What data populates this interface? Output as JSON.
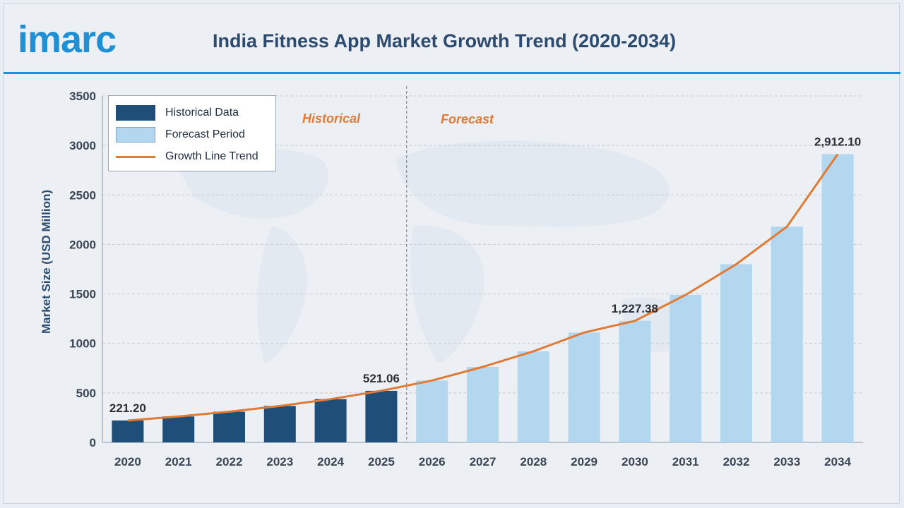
{
  "brand": {
    "logo_text": "imarc"
  },
  "colors": {
    "historical": "#1f4e79",
    "forecast": "#b3d7ef",
    "trend": "#e07a34",
    "brand": "#1f8fd6"
  },
  "chart_data": {
    "type": "bar",
    "title": "India Fitness App Market Growth Trend (2020-2034)",
    "xlabel": "",
    "ylabel": "Market Size (USD Million)",
    "ylim": [
      0,
      3500
    ],
    "yticks": [
      0,
      500,
      1000,
      1500,
      2000,
      2500,
      3000,
      3500
    ],
    "categories": [
      "2020",
      "2021",
      "2022",
      "2023",
      "2024",
      "2025",
      "2026",
      "2027",
      "2028",
      "2029",
      "2030",
      "2031",
      "2032",
      "2033",
      "2034"
    ],
    "series": [
      {
        "name": "Historical Data",
        "values": [
          221.2,
          262,
          310,
          368,
          437,
          521.06,
          null,
          null,
          null,
          null,
          null,
          null,
          null,
          null,
          null
        ]
      },
      {
        "name": "Forecast Period",
        "values": [
          null,
          null,
          null,
          null,
          null,
          null,
          625,
          763,
          920,
          1110,
          1227.38,
          1490,
          1800,
          2180,
          2912.1
        ]
      },
      {
        "name": "Growth Line Trend",
        "values": [
          221.2,
          262,
          310,
          368,
          437,
          521.06,
          625,
          763,
          920,
          1110,
          1227.38,
          1490,
          1800,
          2180,
          2912.1
        ]
      }
    ],
    "data_labels": [
      {
        "category": "2020",
        "text": "221.20"
      },
      {
        "category": "2025",
        "text": "521.06"
      },
      {
        "category": "2030",
        "text": "1,227.38"
      },
      {
        "category": "2034",
        "text": "2,912.10"
      }
    ],
    "phase_labels": {
      "historical": "Historical",
      "forecast": "Forecast"
    },
    "grid": true,
    "legend_position": "top-left"
  }
}
